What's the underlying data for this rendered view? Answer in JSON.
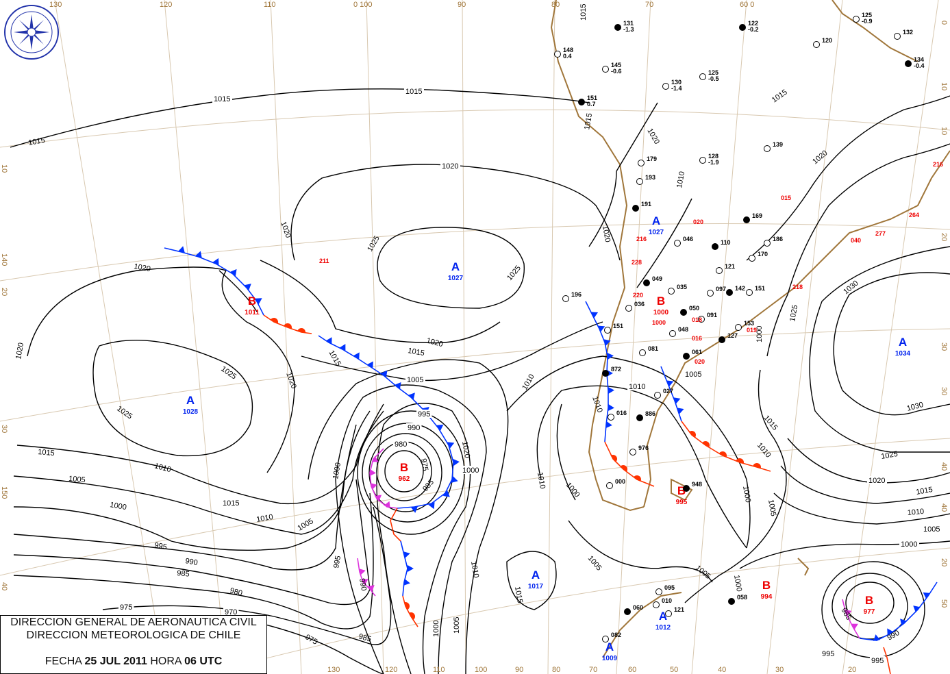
{
  "legend": {
    "line1": "DIRECCION GENERAL DE AERONAUTICA CIVIL",
    "line2": "DIRECCION METEOROLOGICA DE CHILE",
    "fecha_label": "FECHA",
    "date": "25 JUL 2011",
    "hora_label": "HORA",
    "time": "06 UTC"
  },
  "logo": {
    "text": "DIRECCION METEOROLOGICA CHILE"
  },
  "colors": {
    "high": "#0022ee",
    "low": "#ee0000",
    "cold_front": "#0033ff",
    "warm_front": "#ff3300",
    "occluded_front": "#dd33dd",
    "coastline": "#a0763a",
    "isobars": "#000000"
  },
  "pressure_centers": [
    {
      "type": "A",
      "value": "1028"
    },
    {
      "type": "B",
      "value": "1011"
    },
    {
      "type": "A",
      "value": "1027"
    },
    {
      "type": "B",
      "value": "962"
    },
    {
      "type": "A",
      "value": "1017"
    },
    {
      "type": "A",
      "value": "1034"
    },
    {
      "type": "B",
      "value": "994"
    },
    {
      "type": "B",
      "value": "977"
    },
    {
      "type": "A",
      "value": "1027"
    },
    {
      "type": "B",
      "value": "1000"
    },
    {
      "type": "B",
      "value": "995"
    },
    {
      "type": "A",
      "value": "1009"
    },
    {
      "type": "A",
      "value": "1012"
    }
  ],
  "isobar_labels": [
    "1015",
    "1015",
    "1015",
    "1020",
    "1020",
    "1025",
    "1025",
    "1020",
    "1020",
    "1015",
    "1020",
    "1025",
    "1025",
    "1020",
    "1015",
    "1010",
    "1005",
    "1000",
    "995",
    "990",
    "985",
    "980",
    "975",
    "970",
    "975",
    "985",
    "990",
    "995",
    "1000",
    "1005",
    "1010",
    "1015",
    "1015",
    "1020",
    "1010",
    "1005",
    "1000",
    "995",
    "990",
    "980",
    "975",
    "985",
    "1000",
    "1005",
    "1010",
    "1000",
    "1010",
    "1015",
    "1005",
    "1010",
    "1005",
    "1000",
    "1015",
    "1010",
    "1020",
    "1025",
    "1030",
    "1030",
    "1025",
    "1020",
    "1015",
    "1010",
    "1005",
    "1000",
    "995",
    "1015",
    "1015",
    "1020",
    "1020",
    "1010",
    "1000",
    "1005",
    "1005",
    "1015",
    "1000",
    "1010",
    "985",
    "990",
    "995"
  ],
  "graticule_labels": [
    "130",
    "120",
    "110",
    "0 100",
    "90",
    "80",
    "70",
    "60 0",
    "130",
    "120",
    "110",
    "100",
    "90",
    "80",
    "70",
    "60",
    "50",
    "40",
    "30",
    "20",
    "10",
    "140",
    "20",
    "30",
    "150",
    "40",
    "0",
    "10",
    "20",
    "30",
    "30",
    "40",
    "50",
    "20",
    "10",
    "40"
  ],
  "stations": [
    {
      "id": "131",
      "value": "-1.3"
    },
    {
      "id": "148",
      "value": "0.4"
    },
    {
      "id": "145",
      "value": "-0.6"
    },
    {
      "id": "122",
      "value": "-0.2"
    },
    {
      "id": "125",
      "value": "-0.9"
    },
    {
      "id": "132",
      "value": ""
    },
    {
      "id": "134",
      "value": "-0.4"
    },
    {
      "id": "130",
      "value": "-1.4"
    },
    {
      "id": "125",
      "value": "-0.5"
    },
    {
      "id": "151",
      "value": "0.7"
    },
    {
      "id": "179",
      "value": ""
    },
    {
      "id": "193",
      "value": ""
    },
    {
      "id": "191",
      "value": ""
    },
    {
      "id": "128",
      "value": "-1.9"
    },
    {
      "id": "139",
      "value": ""
    },
    {
      "id": "169",
      "value": ""
    },
    {
      "id": "186",
      "value": ""
    },
    {
      "id": "170",
      "value": ""
    },
    {
      "id": "110",
      "value": ""
    },
    {
      "id": "121",
      "value": ""
    },
    {
      "id": "046",
      "value": ""
    },
    {
      "id": "049",
      "value": ""
    },
    {
      "id": "035",
      "value": ""
    },
    {
      "id": "036",
      "value": ""
    },
    {
      "id": "050",
      "value": ""
    },
    {
      "id": "091",
      "value": ""
    },
    {
      "id": "097",
      "value": ""
    },
    {
      "id": "142",
      "value": ""
    },
    {
      "id": "151",
      "value": ""
    },
    {
      "id": "153",
      "value": ""
    },
    {
      "id": "127",
      "value": ""
    },
    {
      "id": "048",
      "value": ""
    },
    {
      "id": "081",
      "value": ""
    },
    {
      "id": "061",
      "value": ""
    },
    {
      "id": "151",
      "value": ""
    },
    {
      "id": "196",
      "value": ""
    },
    {
      "id": "872",
      "value": ""
    },
    {
      "id": "027",
      "value": ""
    },
    {
      "id": "016",
      "value": ""
    },
    {
      "id": "886",
      "value": ""
    },
    {
      "id": "976",
      "value": ""
    },
    {
      "id": "000",
      "value": ""
    },
    {
      "id": "948",
      "value": ""
    },
    {
      "id": "095",
      "value": ""
    },
    {
      "id": "010",
      "value": ""
    },
    {
      "id": "060",
      "value": ""
    },
    {
      "id": "121",
      "value": ""
    },
    {
      "id": "082",
      "value": ""
    },
    {
      "id": "058",
      "value": ""
    },
    {
      "id": "120",
      "value": ""
    }
  ],
  "red_stations": [
    "211",
    "216",
    "228",
    "220",
    "1000",
    "216",
    "264",
    "277",
    "218",
    "015",
    "020",
    "018",
    "016",
    "020",
    "019",
    "040"
  ]
}
